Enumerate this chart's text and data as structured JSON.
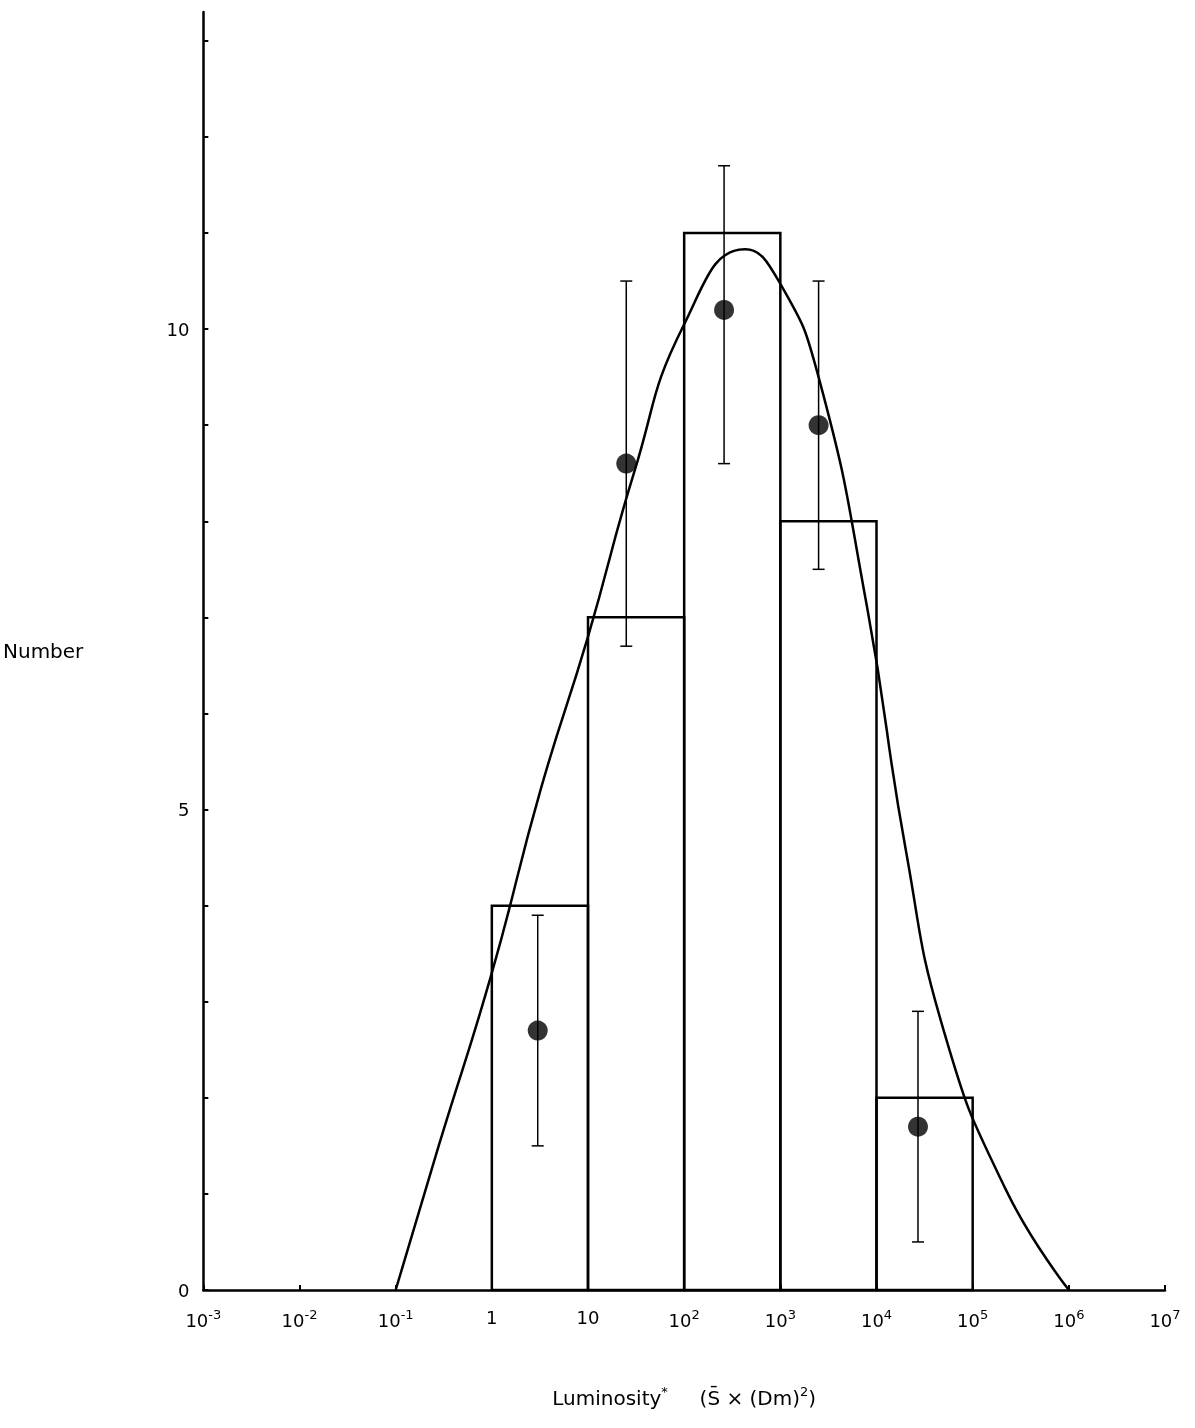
{
  "chart_data": {
    "type": "histogram",
    "xlabel": "Luminosity$^{*}$     (S̄ × (Dm)$^{2}$)",
    "ylabel": "Number",
    "log": "x",
    "grid": false,
    "xlim": [
      0.001,
      10000000
    ],
    "xticks": [
      {
        "value": 0.001,
        "label": "10$^{-3}$"
      },
      {
        "value": 0.01,
        "label": "10$^{-2}$"
      },
      {
        "value": 0.1,
        "label": "10$^{-1}$"
      },
      1,
      10,
      {
        "value": 100,
        "label": "10$^{2}$"
      },
      {
        "value": 1000,
        "label": "10$^{3}$"
      },
      {
        "value": 10000,
        "label": "10$^{4}$"
      },
      {
        "value": 100000,
        "label": "10$^{5}$"
      },
      {
        "value": 1000000,
        "label": "10$^{6}$"
      },
      {
        "value": 10000000,
        "label": "10$^{7}$"
      }
    ],
    "ylim": [
      0,
      13.3
    ],
    "yticks": [
      0,
      {
        "value": 1,
        "label": null
      },
      {
        "value": 2,
        "label": null
      },
      {
        "value": 3,
        "label": null
      },
      {
        "value": 4,
        "label": null
      },
      5,
      {
        "value": 6,
        "label": null
      },
      {
        "value": 7,
        "label": null
      },
      {
        "value": 8,
        "label": null
      },
      {
        "value": 9,
        "label": null
      },
      10,
      {
        "value": 11,
        "label": null
      },
      {
        "value": 12,
        "label": null
      },
      {
        "value": 13,
        "label": null
      }
    ],
    "series": [
      {
        "color": "#000000",
        "bins": [
          1,
          10,
          100,
          1000,
          10000,
          100000
        ],
        "values": [
          4,
          7,
          11,
          8,
          2
        ]
      },
      {
        "type": "scatter",
        "color": "#000000",
        "marker": "circle",
        "x": [
          3,
          25,
          260,
          2500,
          27000
        ],
        "values": [
          2.7,
          8.6,
          10.2,
          9.0,
          1.7
        ],
        "errors": [
          [
            1.5,
            3.9
          ],
          [
            6.7,
            10.5
          ],
          [
            8.6,
            11.7
          ],
          [
            7.5,
            10.5
          ],
          [
            0.5,
            2.9
          ]
        ]
      },
      {
        "type": "line",
        "color": "#000000",
        "marker": "none",
        "line_style": "solid",
        "x": [
          0.1,
          0.28,
          1,
          3.2,
          10,
          30,
          100,
          430,
          1000,
          2500,
          8000,
          20000,
          50000,
          220000,
          1000000
        ],
        "values": [
          0,
          1.5,
          3.3,
          5.2,
          6.8,
          8.5,
          10.05,
          10.83,
          10.47,
          9.5,
          7.1,
          4.6,
          2.7,
          1.05,
          0
        ]
      }
    ]
  }
}
